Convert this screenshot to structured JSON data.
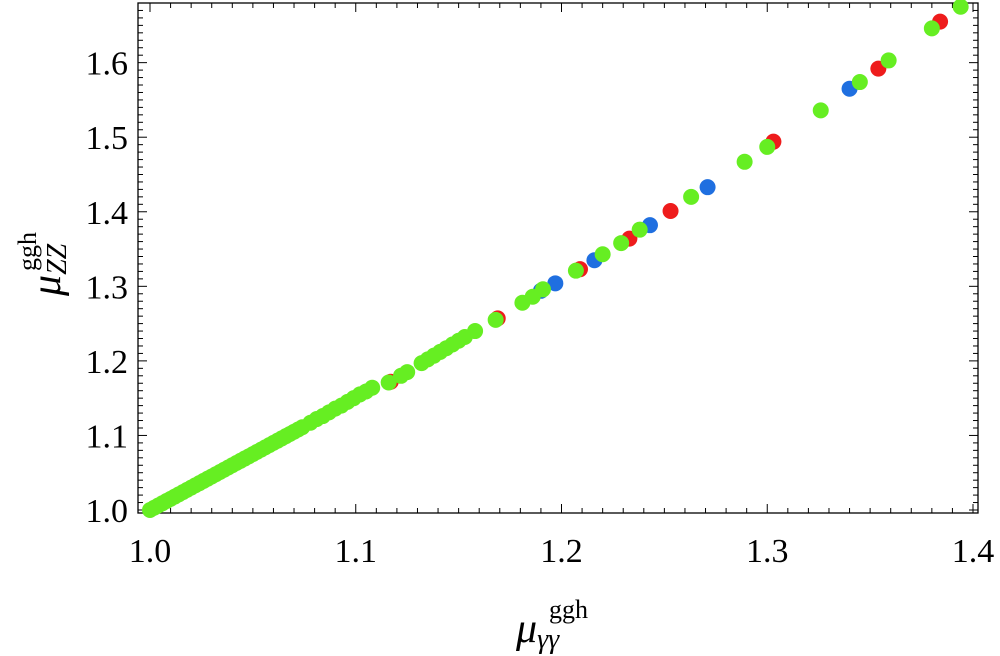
{
  "chart_data": {
    "type": "scatter",
    "xlim": [
      1.0,
      1.4
    ],
    "ylim": [
      1.0,
      1.68
    ],
    "grid": false,
    "legend": "none",
    "xaxis": {
      "ticks": [
        1.0,
        1.1,
        1.2,
        1.3,
        1.4
      ],
      "tick_labels": [
        "1.0",
        "1.1",
        "1.2",
        "1.3",
        "1.4"
      ],
      "label_main": "μ",
      "label_sub": "γγ",
      "label_sup": "ggh"
    },
    "yaxis": {
      "ticks": [
        1.0,
        1.1,
        1.2,
        1.3,
        1.4,
        1.5,
        1.6
      ],
      "tick_labels": [
        "1.0",
        "1.1",
        "1.2",
        "1.3",
        "1.4",
        "1.5",
        "1.6"
      ],
      "label_main": "μ",
      "label_sub": "ZZ",
      "label_sup": "ggh"
    },
    "series": [
      {
        "color": "#ee1c1c",
        "points": [
          [
            1.117,
            1.172
          ],
          [
            1.169,
            1.257
          ],
          [
            1.209,
            1.323
          ],
          [
            1.233,
            1.364
          ],
          [
            1.253,
            1.401
          ],
          [
            1.303,
            1.494
          ],
          [
            1.354,
            1.592
          ],
          [
            1.384,
            1.655
          ]
        ]
      },
      {
        "color": "#1f6fe0",
        "points": [
          [
            1.19,
            1.294
          ],
          [
            1.197,
            1.304
          ],
          [
            1.216,
            1.335
          ],
          [
            1.243,
            1.382
          ],
          [
            1.271,
            1.433
          ],
          [
            1.34,
            1.565
          ]
        ]
      },
      {
        "color": "#66ee22",
        "points": [
          [
            1.0,
            1.0
          ],
          [
            1.002,
            1.003
          ],
          [
            1.004,
            1.006
          ],
          [
            1.006,
            1.009
          ],
          [
            1.008,
            1.012
          ],
          [
            1.01,
            1.015
          ],
          [
            1.012,
            1.018
          ],
          [
            1.014,
            1.021
          ],
          [
            1.016,
            1.024
          ],
          [
            1.018,
            1.027
          ],
          [
            1.02,
            1.03
          ],
          [
            1.022,
            1.033
          ],
          [
            1.024,
            1.036
          ],
          [
            1.026,
            1.039
          ],
          [
            1.028,
            1.042
          ],
          [
            1.03,
            1.045
          ],
          [
            1.032,
            1.048
          ],
          [
            1.034,
            1.051
          ],
          [
            1.036,
            1.054
          ],
          [
            1.038,
            1.057
          ],
          [
            1.04,
            1.06
          ],
          [
            1.042,
            1.063
          ],
          [
            1.044,
            1.066
          ],
          [
            1.046,
            1.069
          ],
          [
            1.048,
            1.072
          ],
          [
            1.05,
            1.075
          ],
          [
            1.052,
            1.078
          ],
          [
            1.054,
            1.081
          ],
          [
            1.056,
            1.084
          ],
          [
            1.058,
            1.087
          ],
          [
            1.06,
            1.09
          ],
          [
            1.062,
            1.093
          ],
          [
            1.064,
            1.096
          ],
          [
            1.066,
            1.099
          ],
          [
            1.068,
            1.102
          ],
          [
            1.07,
            1.105
          ],
          [
            1.072,
            1.108
          ],
          [
            1.074,
            1.111
          ],
          [
            1.078,
            1.117
          ],
          [
            1.081,
            1.122
          ],
          [
            1.084,
            1.126
          ],
          [
            1.087,
            1.131
          ],
          [
            1.09,
            1.136
          ],
          [
            1.093,
            1.14
          ],
          [
            1.096,
            1.145
          ],
          [
            1.099,
            1.15
          ],
          [
            1.102,
            1.155
          ],
          [
            1.105,
            1.159
          ],
          [
            1.108,
            1.164
          ],
          [
            1.116,
            1.171
          ],
          [
            1.122,
            1.18
          ],
          [
            1.125,
            1.185
          ],
          [
            1.132,
            1.197
          ],
          [
            1.135,
            1.202
          ],
          [
            1.138,
            1.207
          ],
          [
            1.141,
            1.212
          ],
          [
            1.144,
            1.217
          ],
          [
            1.147,
            1.222
          ],
          [
            1.15,
            1.227
          ],
          [
            1.153,
            1.232
          ],
          [
            1.158,
            1.24
          ],
          [
            1.168,
            1.255
          ],
          [
            1.181,
            1.278
          ],
          [
            1.186,
            1.286
          ],
          [
            1.191,
            1.296
          ],
          [
            1.207,
            1.321
          ],
          [
            1.22,
            1.343
          ],
          [
            1.229,
            1.358
          ],
          [
            1.238,
            1.376
          ],
          [
            1.263,
            1.42
          ],
          [
            1.289,
            1.467
          ],
          [
            1.3,
            1.487
          ],
          [
            1.326,
            1.536
          ],
          [
            1.345,
            1.574
          ],
          [
            1.359,
            1.603
          ],
          [
            1.38,
            1.646
          ],
          [
            1.394,
            1.675
          ]
        ]
      }
    ]
  }
}
